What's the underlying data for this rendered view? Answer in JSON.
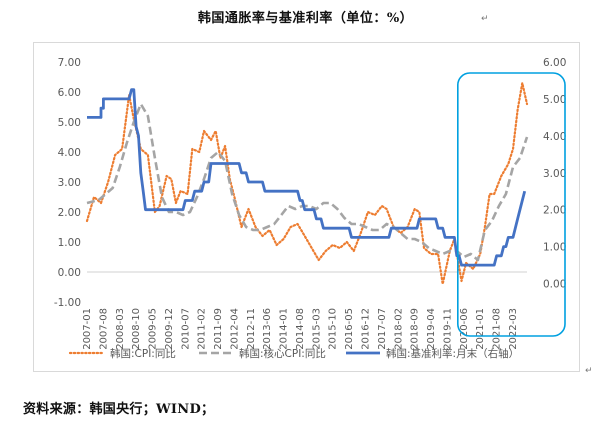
{
  "document": {
    "title": "韩国通胀率与基准利率（单位：%）",
    "title_mark": "↵",
    "end_mark": "↵",
    "source": "资料来源：韩国央行；WIND；"
  },
  "chart_data": {
    "type": "line",
    "left_axis": {
      "min": -1,
      "max": 7,
      "ticks": [
        "7.00",
        "6.00",
        "5.00",
        "4.00",
        "3.00",
        "2.00",
        "1.00",
        "0.00",
        "-1.00"
      ]
    },
    "right_axis": {
      "min": -0.5,
      "max": 6,
      "ticks": [
        "6.00",
        "5.00",
        "4.00",
        "3.00",
        "2.00",
        "1.00",
        "0.00"
      ]
    },
    "x_start": "2007-01",
    "x_end": "2022-09",
    "x_ticks": [
      "2007-01",
      "2007-08",
      "2008-03",
      "2008-10",
      "2009-05",
      "2009-12",
      "2010-07",
      "2011-02",
      "2011-09",
      "2012-04",
      "2012-11",
      "2013-06",
      "2014-01",
      "2014-08",
      "2015-03",
      "2015-10",
      "2016-05",
      "2016-12",
      "2017-07",
      "2018-02",
      "2018-09",
      "2019-04",
      "2019-11",
      "2020-06",
      "2021-01",
      "2021-08",
      "2022-03"
    ],
    "grid": false,
    "legend_position": "bottom",
    "highlight_box": {
      "from": "2020-06",
      "to": "2022-09",
      "color": "#00a0e0"
    },
    "series": [
      {
        "name": "韩国:CPI:同比",
        "color": "#ed7d31",
        "style": "dotted",
        "axis": "left",
        "points": [
          [
            "2007-01",
            1.7
          ],
          [
            "2007-04",
            2.5
          ],
          [
            "2007-07",
            2.3
          ],
          [
            "2007-10",
            3.0
          ],
          [
            "2008-01",
            3.9
          ],
          [
            "2008-04",
            4.1
          ],
          [
            "2008-07",
            5.9
          ],
          [
            "2008-09",
            5.1
          ],
          [
            "2008-12",
            4.1
          ],
          [
            "2009-03",
            3.9
          ],
          [
            "2009-06",
            2.0
          ],
          [
            "2009-08",
            2.2
          ],
          [
            "2009-11",
            3.2
          ],
          [
            "2010-01",
            3.1
          ],
          [
            "2010-03",
            2.3
          ],
          [
            "2010-05",
            2.7
          ],
          [
            "2010-08",
            2.6
          ],
          [
            "2010-10",
            4.1
          ],
          [
            "2011-01",
            4.0
          ],
          [
            "2011-03",
            4.7
          ],
          [
            "2011-06",
            4.4
          ],
          [
            "2011-08",
            4.7
          ],
          [
            "2011-10",
            3.8
          ],
          [
            "2011-12",
            4.2
          ],
          [
            "2012-02",
            3.1
          ],
          [
            "2012-04",
            2.5
          ],
          [
            "2012-07",
            1.5
          ],
          [
            "2012-10",
            2.1
          ],
          [
            "2013-01",
            1.5
          ],
          [
            "2013-04",
            1.2
          ],
          [
            "2013-07",
            1.4
          ],
          [
            "2013-10",
            0.9
          ],
          [
            "2014-01",
            1.1
          ],
          [
            "2014-04",
            1.5
          ],
          [
            "2014-07",
            1.6
          ],
          [
            "2014-10",
            1.2
          ],
          [
            "2015-01",
            0.8
          ],
          [
            "2015-04",
            0.4
          ],
          [
            "2015-07",
            0.7
          ],
          [
            "2015-10",
            0.9
          ],
          [
            "2016-01",
            0.8
          ],
          [
            "2016-04",
            1.0
          ],
          [
            "2016-07",
            0.7
          ],
          [
            "2016-10",
            1.3
          ],
          [
            "2017-01",
            2.0
          ],
          [
            "2017-04",
            1.9
          ],
          [
            "2017-07",
            2.2
          ],
          [
            "2017-09",
            2.1
          ],
          [
            "2017-12",
            1.5
          ],
          [
            "2018-03",
            1.3
          ],
          [
            "2018-06",
            1.5
          ],
          [
            "2018-09",
            2.1
          ],
          [
            "2018-11",
            2.0
          ],
          [
            "2019-01",
            0.8
          ],
          [
            "2019-04",
            0.6
          ],
          [
            "2019-07",
            0.6
          ],
          [
            "2019-09",
            -0.4
          ],
          [
            "2019-12",
            0.7
          ],
          [
            "2020-02",
            1.1
          ],
          [
            "2020-05",
            -0.3
          ],
          [
            "2020-07",
            0.3
          ],
          [
            "2020-10",
            0.1
          ],
          [
            "2021-01",
            0.6
          ],
          [
            "2021-03",
            1.5
          ],
          [
            "2021-05",
            2.6
          ],
          [
            "2021-07",
            2.6
          ],
          [
            "2021-10",
            3.2
          ],
          [
            "2022-01",
            3.6
          ],
          [
            "2022-03",
            4.1
          ],
          [
            "2022-05",
            5.4
          ],
          [
            "2022-07",
            6.3
          ],
          [
            "2022-09",
            5.6
          ]
        ]
      },
      {
        "name": "韩国:核心CPI:同比",
        "color": "#a5a5a5",
        "style": "dashed",
        "axis": "left",
        "points": [
          [
            "2007-01",
            2.3
          ],
          [
            "2007-06",
            2.4
          ],
          [
            "2007-12",
            2.8
          ],
          [
            "2008-03",
            3.5
          ],
          [
            "2008-06",
            4.3
          ],
          [
            "2008-09",
            5.0
          ],
          [
            "2008-12",
            5.6
          ],
          [
            "2009-03",
            5.2
          ],
          [
            "2009-06",
            3.8
          ],
          [
            "2009-09",
            2.5
          ],
          [
            "2009-12",
            2.0
          ],
          [
            "2010-03",
            2.0
          ],
          [
            "2010-06",
            1.9
          ],
          [
            "2010-09",
            2.0
          ],
          [
            "2010-12",
            2.5
          ],
          [
            "2011-03",
            3.1
          ],
          [
            "2011-06",
            3.8
          ],
          [
            "2011-09",
            4.0
          ],
          [
            "2011-12",
            3.7
          ],
          [
            "2012-03",
            2.6
          ],
          [
            "2012-06",
            1.9
          ],
          [
            "2012-09",
            1.5
          ],
          [
            "2012-12",
            1.4
          ],
          [
            "2013-03",
            1.4
          ],
          [
            "2013-06",
            1.5
          ],
          [
            "2013-09",
            1.6
          ],
          [
            "2013-12",
            1.9
          ],
          [
            "2014-03",
            2.2
          ],
          [
            "2014-06",
            2.1
          ],
          [
            "2014-09",
            2.2
          ],
          [
            "2014-12",
            2.2
          ],
          [
            "2015-03",
            2.1
          ],
          [
            "2015-06",
            2.3
          ],
          [
            "2015-09",
            2.3
          ],
          [
            "2015-12",
            2.1
          ],
          [
            "2016-03",
            1.8
          ],
          [
            "2016-06",
            1.6
          ],
          [
            "2016-09",
            1.6
          ],
          [
            "2016-12",
            1.5
          ],
          [
            "2017-03",
            1.4
          ],
          [
            "2017-06",
            1.4
          ],
          [
            "2017-09",
            1.6
          ],
          [
            "2017-12",
            1.5
          ],
          [
            "2018-03",
            1.3
          ],
          [
            "2018-06",
            1.1
          ],
          [
            "2018-09",
            1.1
          ],
          [
            "2018-12",
            1.0
          ],
          [
            "2019-03",
            0.8
          ],
          [
            "2019-06",
            0.7
          ],
          [
            "2019-09",
            0.6
          ],
          [
            "2019-12",
            0.7
          ],
          [
            "2020-03",
            0.7
          ],
          [
            "2020-06",
            0.5
          ],
          [
            "2020-09",
            0.6
          ],
          [
            "2020-12",
            0.4
          ],
          [
            "2021-03",
            1.4
          ],
          [
            "2021-06",
            1.7
          ],
          [
            "2021-09",
            2.2
          ],
          [
            "2021-12",
            2.6
          ],
          [
            "2022-03",
            3.5
          ],
          [
            "2022-06",
            3.8
          ],
          [
            "2022-09",
            4.5
          ]
        ]
      },
      {
        "name": "韩国:基准利率:月末（右轴）",
        "color": "#4472c4",
        "style": "solid",
        "axis": "right",
        "points": [
          [
            "2007-01",
            4.5
          ],
          [
            "2007-07",
            4.5
          ],
          [
            "2007-07",
            4.75
          ],
          [
            "2007-08",
            4.75
          ],
          [
            "2007-08",
            5.0
          ],
          [
            "2008-07",
            5.0
          ],
          [
            "2008-08",
            5.25
          ],
          [
            "2008-09",
            5.25
          ],
          [
            "2008-10",
            4.25
          ],
          [
            "2008-11",
            4.0
          ],
          [
            "2008-12",
            3.0
          ],
          [
            "2009-01",
            2.5
          ],
          [
            "2009-02",
            2.0
          ],
          [
            "2010-06",
            2.0
          ],
          [
            "2010-07",
            2.25
          ],
          [
            "2010-10",
            2.25
          ],
          [
            "2010-11",
            2.5
          ],
          [
            "2011-02",
            2.5
          ],
          [
            "2011-03",
            2.75
          ],
          [
            "2011-05",
            2.75
          ],
          [
            "2011-06",
            3.25
          ],
          [
            "2012-06",
            3.25
          ],
          [
            "2012-07",
            3.0
          ],
          [
            "2012-09",
            3.0
          ],
          [
            "2012-10",
            2.75
          ],
          [
            "2013-04",
            2.75
          ],
          [
            "2013-05",
            2.5
          ],
          [
            "2014-07",
            2.5
          ],
          [
            "2014-08",
            2.25
          ],
          [
            "2014-09",
            2.25
          ],
          [
            "2014-10",
            2.0
          ],
          [
            "2015-02",
            2.0
          ],
          [
            "2015-03",
            1.75
          ],
          [
            "2015-05",
            1.75
          ],
          [
            "2015-06",
            1.5
          ],
          [
            "2016-05",
            1.5
          ],
          [
            "2016-06",
            1.25
          ],
          [
            "2017-10",
            1.25
          ],
          [
            "2017-11",
            1.5
          ],
          [
            "2018-10",
            1.5
          ],
          [
            "2018-11",
            1.75
          ],
          [
            "2019-06",
            1.75
          ],
          [
            "2019-07",
            1.5
          ],
          [
            "2019-09",
            1.5
          ],
          [
            "2019-10",
            1.25
          ],
          [
            "2020-02",
            1.25
          ],
          [
            "2020-03",
            0.75
          ],
          [
            "2020-04",
            0.75
          ],
          [
            "2020-05",
            0.5
          ],
          [
            "2021-07",
            0.5
          ],
          [
            "2021-08",
            0.75
          ],
          [
            "2021-10",
            0.75
          ],
          [
            "2021-11",
            1.0
          ],
          [
            "2021-12",
            1.0
          ],
          [
            "2022-01",
            1.25
          ],
          [
            "2022-03",
            1.25
          ],
          [
            "2022-04",
            1.5
          ],
          [
            "2022-05",
            1.75
          ],
          [
            "2022-07",
            2.25
          ],
          [
            "2022-08",
            2.5
          ]
        ]
      }
    ]
  }
}
